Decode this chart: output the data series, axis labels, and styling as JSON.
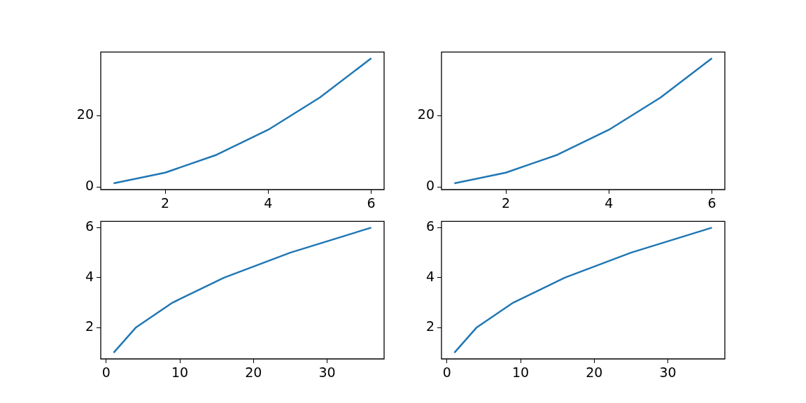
{
  "chart_data": [
    {
      "type": "line",
      "x": [
        1,
        2,
        3,
        4,
        5,
        6
      ],
      "series": [
        {
          "color": "#1f77b4",
          "values": [
            1,
            4,
            9,
            16,
            25,
            36
          ]
        }
      ],
      "xlim": [
        0.75,
        6.25
      ],
      "ylim": [
        -0.75,
        37.75
      ],
      "xticks": [
        2,
        4,
        6
      ],
      "yticks": [
        0,
        20
      ]
    },
    {
      "type": "line",
      "x": [
        1,
        2,
        3,
        4,
        5,
        6
      ],
      "series": [
        {
          "color": "#1f77b4",
          "values": [
            1,
            4,
            9,
            16,
            25,
            36
          ]
        }
      ],
      "xlim": [
        0.75,
        6.25
      ],
      "ylim": [
        -0.75,
        37.75
      ],
      "xticks": [
        2,
        4,
        6
      ],
      "yticks": [
        0,
        20
      ]
    },
    {
      "type": "line",
      "x": [
        1,
        4,
        9,
        16,
        25,
        36
      ],
      "series": [
        {
          "color": "#1f77b4",
          "values": [
            1,
            2,
            3,
            4,
            5,
            6
          ]
        }
      ],
      "xlim": [
        -0.75,
        37.75
      ],
      "ylim": [
        0.75,
        6.25
      ],
      "xticks": [
        0,
        10,
        20,
        30
      ],
      "yticks": [
        2,
        4,
        6
      ]
    },
    {
      "type": "line",
      "x": [
        1,
        4,
        9,
        16,
        25,
        36
      ],
      "series": [
        {
          "color": "#1f77b4",
          "values": [
            1,
            2,
            3,
            4,
            5,
            6
          ]
        }
      ],
      "xlim": [
        -0.75,
        37.75
      ],
      "ylim": [
        0.75,
        6.25
      ],
      "xticks": [
        0,
        10,
        20,
        30
      ],
      "yticks": [
        2,
        4,
        6
      ]
    }
  ]
}
